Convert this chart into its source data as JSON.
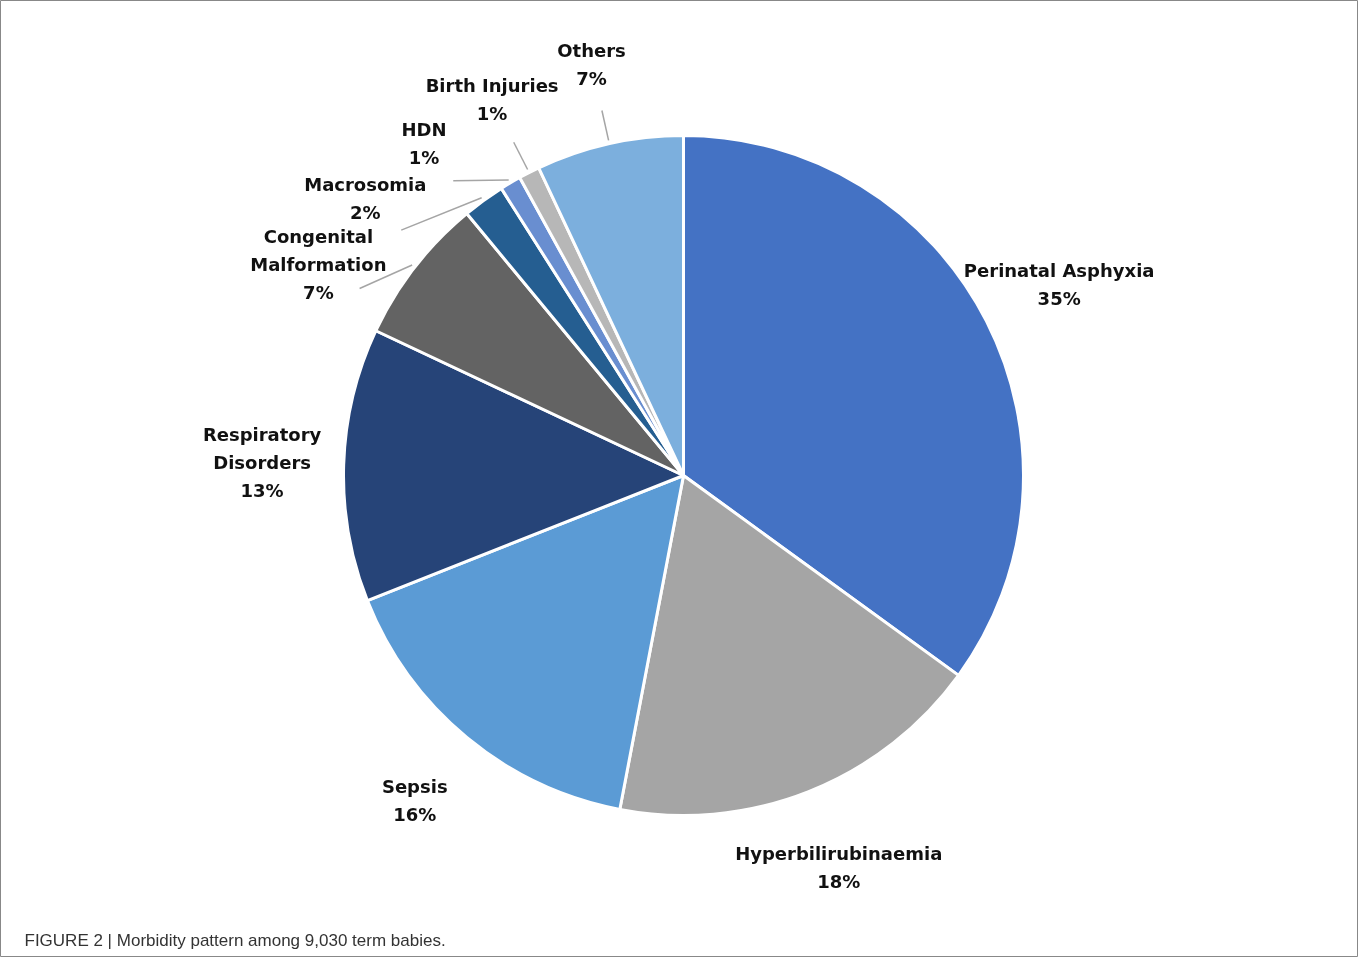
{
  "chart_data": {
    "type": "pie",
    "categories": [
      "Perinatal Asphyxia",
      "Hyperbilirubinaemia",
      "Sepsis",
      "Respiratory Disorders",
      "Congenital Malformation",
      "Macrosomia",
      "HDN",
      "Birth Injuries",
      "Others"
    ],
    "values": [
      35,
      18,
      16,
      13,
      7,
      2,
      1,
      1,
      7
    ],
    "value_labels": [
      "35%",
      "18%",
      "16%",
      "13%",
      "7%",
      "2%",
      "1%",
      "1%",
      "7%"
    ],
    "colors": [
      "#4472c4",
      "#a5a5a5",
      "#5b9bd5",
      "#264478",
      "#636363",
      "#255e91",
      "#698ed0",
      "#b7b7b7",
      "#7cafdd"
    ],
    "annotations": [
      "FIGURE 2 | Morbidity pattern among 9,030 term babies."
    ]
  }
}
